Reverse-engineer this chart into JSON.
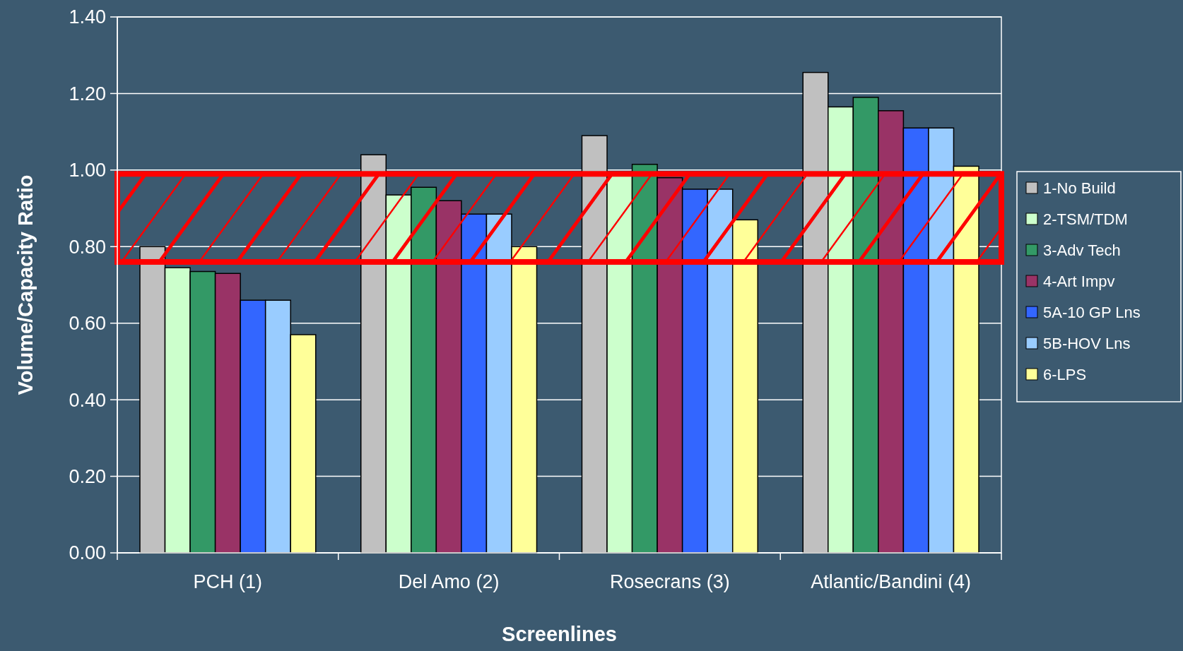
{
  "chart_data": {
    "type": "bar",
    "xlabel": "Screenlines",
    "ylabel": "Volume/Capacity Ratio",
    "categories": [
      "PCH (1)",
      "Del Amo (2)",
      "Rosecrans (3)",
      "Atlantic/Bandini (4)"
    ],
    "series": [
      {
        "name": "1-No Build",
        "color": "#c0c0c0",
        "values": [
          0.8,
          1.04,
          1.09,
          1.255
        ]
      },
      {
        "name": "2-TSM/TDM",
        "color": "#ccffcc",
        "values": [
          0.745,
          0.935,
          0.99,
          1.165
        ]
      },
      {
        "name": "3-Adv Tech",
        "color": "#339966",
        "values": [
          0.735,
          0.955,
          1.015,
          1.19
        ]
      },
      {
        "name": "4-Art Impv",
        "color": "#993366",
        "values": [
          0.73,
          0.92,
          0.98,
          1.155
        ]
      },
      {
        "name": "5A-10 GP Lns",
        "color": "#3366ff",
        "values": [
          0.66,
          0.885,
          0.95,
          1.11
        ]
      },
      {
        "name": "5B-HOV Lns",
        "color": "#99ccff",
        "values": [
          0.66,
          0.885,
          0.95,
          1.11
        ]
      },
      {
        "name": "6-LPS",
        "color": "#ffff99",
        "values": [
          0.57,
          0.8,
          0.87,
          1.01
        ]
      }
    ],
    "ylim": [
      0,
      1.4
    ],
    "yticks": [
      {
        "value": 0,
        "label": "0.00"
      },
      {
        "value": 0.2,
        "label": "0.20"
      },
      {
        "value": 0.4,
        "label": "0.40"
      },
      {
        "value": 0.6,
        "label": "0.60"
      },
      {
        "value": 0.8,
        "label": "0.80"
      },
      {
        "value": 1,
        "label": "1.00"
      },
      {
        "value": 1.2,
        "label": "1.20"
      },
      {
        "value": 1.4,
        "label": "1.40"
      }
    ],
    "grid": "y",
    "legend": "right",
    "bands": [
      {
        "axis": "y",
        "from": 0.76,
        "to": 0.99,
        "color": "#ff0000"
      }
    ]
  }
}
